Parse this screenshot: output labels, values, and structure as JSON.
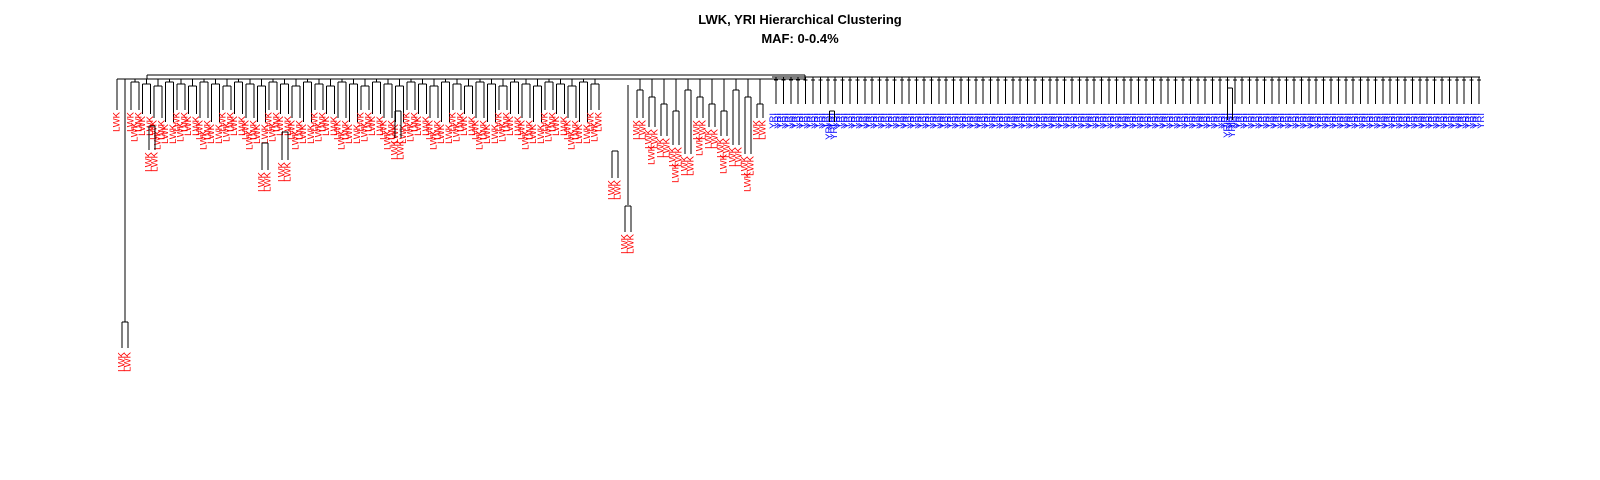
{
  "title": "LWK, YRI Hierarchical Clustering",
  "subtitle": "MAF: 0-0.4%",
  "groups": [
    {
      "name": "LWK",
      "color": "#ff0000"
    },
    {
      "name": "YRI",
      "color": "#0000ff"
    }
  ]
}
